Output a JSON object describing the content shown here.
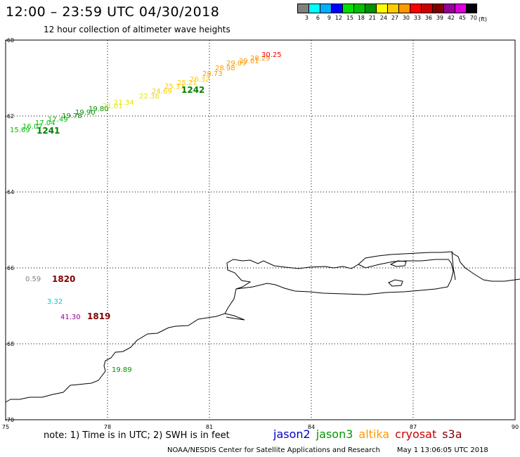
{
  "title": "12:00 – 23:59 UTC 04/30/2018",
  "subtitle": "12 hour collection of altimeter wave heights",
  "legend": {
    "unit": "(ft)",
    "bins": [
      {
        "label": "3",
        "color": "#808080"
      },
      {
        "label": "6",
        "color": "#00ffff"
      },
      {
        "label": "9",
        "color": "#00b0ff"
      },
      {
        "label": "12",
        "color": "#0000ff"
      },
      {
        "label": "15",
        "color": "#00e000"
      },
      {
        "label": "18",
        "color": "#00c000"
      },
      {
        "label": "21",
        "color": "#009000"
      },
      {
        "label": "24",
        "color": "#ffff00"
      },
      {
        "label": "27",
        "color": "#ffcc00"
      },
      {
        "label": "30",
        "color": "#ff9900"
      },
      {
        "label": "33",
        "color": "#ff0000"
      },
      {
        "label": "36",
        "color": "#cc0000"
      },
      {
        "label": "39",
        "color": "#800000"
      },
      {
        "label": "42",
        "color": "#990099"
      },
      {
        "label": "45",
        "color": "#dd00dd"
      },
      {
        "label": "70",
        "color": "#000000"
      }
    ]
  },
  "axes": {
    "lat_labels": [
      "-60",
      "-62",
      "-64",
      "-66",
      "-68",
      "-70"
    ],
    "lon_labels": [
      "75",
      "78",
      "81",
      "84",
      "87",
      "90"
    ]
  },
  "tracks": [
    {
      "id": "1241",
      "id_color": "#008000",
      "readings": [
        {
          "v": "15.69",
          "c": "#00c000"
        },
        {
          "v": "16.07",
          "c": "#00c000"
        },
        {
          "v": "17.04",
          "c": "#00c000"
        },
        {
          "v": "17.49",
          "c": "#00c000"
        },
        {
          "v": "19.78",
          "c": "#009000"
        },
        {
          "v": "19.90",
          "c": "#009000"
        },
        {
          "v": "19.80",
          "c": "#009000"
        },
        {
          "v": "21.01",
          "c": "#e6e600"
        },
        {
          "v": "21.34",
          "c": "#e6e600"
        }
      ]
    },
    {
      "id": "1242",
      "id_color": "#008000",
      "readings": [
        {
          "v": "22.38",
          "c": "#e6e600"
        },
        {
          "v": "24.69",
          "c": "#ffcc00"
        },
        {
          "v": "25.33",
          "c": "#ffcc00"
        },
        {
          "v": "25.21",
          "c": "#ffcc00"
        },
        {
          "v": "26.32",
          "c": "#ffcc00"
        },
        {
          "v": "28.73",
          "c": "#ff9900"
        },
        {
          "v": "28.98",
          "c": "#ff9900"
        },
        {
          "v": "29.09",
          "c": "#ff9900"
        },
        {
          "v": "29.01",
          "c": "#ff9900"
        },
        {
          "v": "28.29",
          "c": "#ff9900"
        },
        {
          "v": "30.25",
          "c": "#ff0000"
        }
      ]
    },
    {
      "id": "1820",
      "id_color": "#800000",
      "readings": [
        {
          "v": "0.59",
          "c": "#808080"
        }
      ]
    },
    {
      "id": "",
      "id_color": "#000000",
      "readings": [
        {
          "v": "3.32",
          "c": "#00cccc"
        }
      ]
    },
    {
      "id": "1819",
      "id_color": "#800000",
      "readings": [
        {
          "v": "41.30",
          "c": "#990099"
        }
      ]
    },
    {
      "id": "",
      "id_color": "#000000",
      "readings": [
        {
          "v": "19.89",
          "c": "#009000"
        }
      ]
    }
  ],
  "note": "note:  1) Time is in UTC;  2) SWH is in feet",
  "satellites": [
    {
      "name": "jason2",
      "color": "#0000cc"
    },
    {
      "name": "jason3",
      "color": "#009900"
    },
    {
      "name": "altika",
      "color": "#ff9900"
    },
    {
      "name": "cryosat",
      "color": "#cc0000"
    },
    {
      "name": "s3a",
      "color": "#800000"
    }
  ],
  "footer": {
    "credit": "NOAA/NESDIS Center for Satellite Applications and Research",
    "timestamp": "May  1 13:06:05 UTC 2018"
  }
}
